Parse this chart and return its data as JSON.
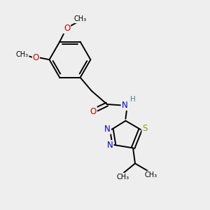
{
  "bg_color": "#eeeeee",
  "bond_color": "#000000",
  "N_color": "#0000cc",
  "O_color": "#cc0000",
  "S_color": "#999900",
  "H_color": "#448888",
  "lw": 1.4,
  "figsize": [
    3.0,
    3.0
  ],
  "dpi": 100,
  "xlim": [
    0,
    10
  ],
  "ylim": [
    0,
    10
  ]
}
